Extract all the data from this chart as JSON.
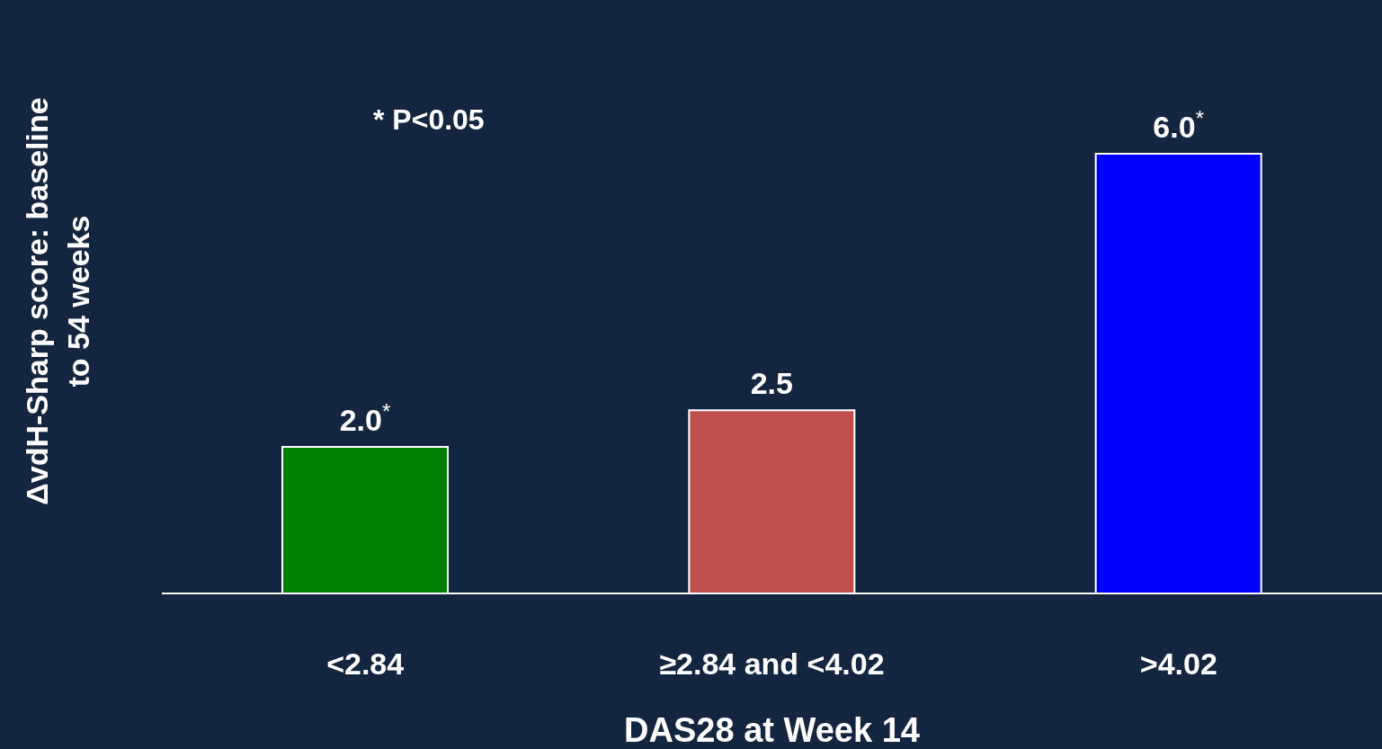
{
  "chart_data": {
    "type": "bar",
    "xlabel": "DAS28 at Week 14",
    "ylabel": "ΔvdH-Sharp score: baseline to 54 weeks",
    "categories": [
      "<2.84",
      "≥2.84 and <4.02",
      ">4.02"
    ],
    "values": [
      2.0,
      2.5,
      6.0
    ],
    "colors": [
      "#008000",
      "#c0504d",
      "#0000ff"
    ],
    "value_labels": [
      "2.0$^{*}$",
      "2.5",
      "6.0$^{*}$"
    ],
    "tick_labels": "x",
    "annotations": [
      "* P<0.05"
    ]
  }
}
